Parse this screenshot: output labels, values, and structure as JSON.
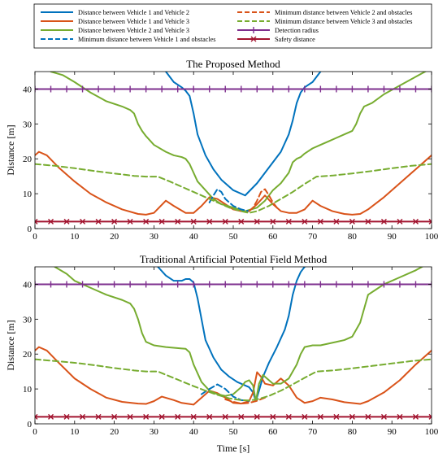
{
  "legend": [
    {
      "label": "Distance between Vehicle 1 and Vehicle 2",
      "color": "#0072BD",
      "style": "solid",
      "marker": "none"
    },
    {
      "label": "Distance between Vehicle 1 and Vehicle 3",
      "color": "#D95319",
      "style": "solid",
      "marker": "none"
    },
    {
      "label": "Distance between Vehicle 2 and Vehicle 3",
      "color": "#77AC30",
      "style": "solid",
      "marker": "none"
    },
    {
      "label": "Minimum distance between Vehicle 1 and obstacles",
      "color": "#0072BD",
      "style": "dashed",
      "marker": "none"
    },
    {
      "label": "Minimum distance between Vehicle 2 and obstacles",
      "color": "#D95319",
      "style": "dashed",
      "marker": "none"
    },
    {
      "label": "Minimum distance between Vehicle 3 and obstacles",
      "color": "#77AC30",
      "style": "dashed",
      "marker": "none"
    },
    {
      "label": "Detection radius",
      "color": "#7E2F8E",
      "style": "solid",
      "marker": "plus"
    },
    {
      "label": "Safety distance",
      "color": "#A2142F",
      "style": "solid",
      "marker": "x"
    }
  ],
  "chart_data": [
    {
      "type": "line",
      "title": "The Proposed Method",
      "xlabel": "",
      "ylabel": "Distance [m]",
      "xlim": [
        0,
        100
      ],
      "ylim": [
        0,
        45
      ],
      "xticks": [
        0,
        10,
        20,
        30,
        40,
        50,
        60,
        70,
        80,
        90,
        100
      ],
      "yticks": [
        0,
        10,
        20,
        30,
        40
      ],
      "series": [
        {
          "name": "Distance between Vehicle 1 and Vehicle 2",
          "color": "#0072BD",
          "style": "solid",
          "x": [
            33,
            35,
            37,
            38,
            39,
            40,
            41,
            43,
            45,
            47,
            50,
            53,
            56,
            58,
            60,
            62,
            64,
            65,
            66,
            67,
            68,
            70,
            72
          ],
          "y": [
            45,
            42,
            40.5,
            39.5,
            38,
            33,
            27,
            21,
            17,
            14,
            11,
            9.5,
            13,
            16,
            19,
            22,
            27,
            31,
            36,
            39,
            40.5,
            42,
            45
          ]
        },
        {
          "name": "Distance between Vehicle 1 and Vehicle 3",
          "color": "#D95319",
          "style": "solid",
          "x": [
            0,
            1,
            3,
            6,
            10,
            14,
            18,
            22,
            26,
            28,
            30,
            33,
            35,
            38,
            40,
            42,
            44,
            46,
            48,
            50,
            52,
            54,
            56,
            58,
            60,
            62,
            64,
            66,
            68,
            70,
            72,
            75,
            78,
            80,
            82,
            84,
            88,
            92,
            96,
            100
          ],
          "y": [
            21,
            22,
            21,
            17.5,
            13.5,
            10,
            7.5,
            5.5,
            4.2,
            4,
            4.5,
            8,
            6.5,
            4.5,
            4.5,
            6.5,
            9,
            8.5,
            7,
            5.5,
            5,
            5,
            7,
            9.5,
            7,
            5,
            4.5,
            4.5,
            5.5,
            8,
            6.5,
            5,
            4.2,
            4,
            4.2,
            5.5,
            9,
            13,
            17,
            21
          ]
        },
        {
          "name": "Distance between Vehicle 2 and Vehicle 3",
          "color": "#77AC30",
          "style": "solid",
          "x": [
            4,
            7,
            10,
            14,
            18,
            22,
            24,
            25,
            26,
            27,
            28,
            30,
            33,
            35,
            37,
            38,
            39,
            40,
            41,
            43,
            45,
            47,
            50,
            53,
            56,
            58,
            60,
            62,
            64,
            65,
            66,
            67,
            68,
            70,
            72,
            74,
            76,
            78,
            80,
            81,
            82,
            83,
            85,
            88,
            92,
            96,
            100
          ],
          "y": [
            45,
            44,
            42,
            39,
            36.5,
            35,
            34,
            33,
            30,
            28,
            26.5,
            24,
            22,
            21,
            20.5,
            20,
            18.5,
            16,
            13.5,
            11,
            8.5,
            7,
            6,
            5,
            6,
            8,
            11,
            13,
            16,
            19,
            20,
            20.5,
            21.5,
            23,
            24,
            25,
            26,
            27,
            28,
            30,
            33,
            35,
            36,
            38.5,
            41,
            43.5,
            46
          ]
        },
        {
          "name": "Minimum distance between Vehicle 1 and obstacles",
          "color": "#0072BD",
          "style": "dashed",
          "x": [
            44,
            45,
            46,
            47,
            48,
            50,
            52,
            54
          ],
          "y": [
            7.5,
            9.5,
            11.3,
            10.5,
            8.5,
            6.5,
            5.5,
            5
          ]
        },
        {
          "name": "Minimum distance between Vehicle 2 and obstacles",
          "color": "#D95319",
          "style": "dashed",
          "x": [
            54,
            55,
            56,
            57,
            58,
            59,
            60,
            61
          ],
          "y": [
            5,
            6,
            8,
            10.5,
            11.3,
            9.5,
            7.5,
            6
          ]
        },
        {
          "name": "Minimum distance between Vehicle 3 and obstacles",
          "color": "#77AC30",
          "style": "dashed",
          "x": [
            0,
            5,
            10,
            15,
            20,
            25,
            28,
            31,
            34,
            37,
            40,
            43,
            46,
            49,
            52,
            54,
            56,
            59,
            62,
            65,
            68,
            71,
            75,
            80,
            85,
            90,
            95,
            100
          ],
          "y": [
            18.5,
            18,
            17.3,
            16.5,
            15.8,
            15.1,
            14.9,
            14.9,
            13.5,
            12,
            10.5,
            9,
            7.5,
            6,
            5,
            4.5,
            5,
            6.5,
            8.5,
            10.5,
            12.8,
            14.9,
            15.2,
            15.8,
            16.5,
            17.3,
            18,
            18.5
          ]
        },
        {
          "name": "Detection radius",
          "color": "#7E2F8E",
          "style": "solid",
          "marker": "plus",
          "x": [
            0,
            100
          ],
          "y": [
            40,
            40
          ]
        },
        {
          "name": "Safety distance",
          "color": "#A2142F",
          "style": "solid",
          "marker": "x",
          "x": [
            0,
            100
          ],
          "y": [
            2,
            2
          ]
        }
      ]
    },
    {
      "type": "line",
      "title": "Traditional Artificial Potential Field Method",
      "xlabel": "Time [s]",
      "ylabel": "Distance [m]",
      "xlim": [
        0,
        100
      ],
      "ylim": [
        0,
        45
      ],
      "xticks": [
        0,
        10,
        20,
        30,
        40,
        50,
        60,
        70,
        80,
        90,
        100
      ],
      "yticks": [
        0,
        10,
        20,
        30,
        40
      ],
      "series": [
        {
          "name": "Distance between Vehicle 1 and Vehicle 2",
          "color": "#0072BD",
          "style": "solid",
          "x": [
            31,
            33,
            35,
            37,
            38,
            39,
            40,
            41,
            42,
            43,
            45,
            47,
            49,
            51,
            53,
            54,
            55,
            55.7,
            56.5,
            57.5,
            59,
            61,
            63,
            64,
            65,
            66,
            67,
            68,
            70
          ],
          "y": [
            45,
            42.5,
            41,
            41,
            41.5,
            41.5,
            40.5,
            36,
            30,
            24,
            19,
            15.5,
            13.5,
            12,
            11,
            10.5,
            9,
            6.5,
            9.5,
            13.5,
            17.5,
            22,
            27,
            31,
            37,
            41,
            43.5,
            45,
            46
          ]
        },
        {
          "name": "Distance between Vehicle 1 and Vehicle 3",
          "color": "#D95319",
          "style": "solid",
          "x": [
            0,
            1,
            3,
            6,
            10,
            14,
            18,
            22,
            26,
            28,
            30,
            32,
            35,
            37,
            40,
            42,
            44,
            46,
            48,
            50,
            52,
            54,
            55,
            56,
            57,
            58,
            60,
            62,
            64,
            66,
            68,
            70,
            72,
            75,
            78,
            82,
            84,
            88,
            92,
            96,
            100
          ],
          "y": [
            21,
            22,
            21,
            17.5,
            13,
            10,
            7.5,
            6.3,
            5.8,
            5.7,
            6.5,
            7.8,
            6.8,
            6,
            5.5,
            7.5,
            9.5,
            8.8,
            7.5,
            6,
            5.8,
            6.5,
            9,
            14.8,
            13.5,
            11.5,
            11,
            13,
            11,
            7.5,
            6,
            6.5,
            7.5,
            7,
            6.2,
            5.7,
            6.5,
            9,
            12.5,
            17,
            21
          ]
        },
        {
          "name": "Distance between Vehicle 2 and Vehicle 3",
          "color": "#77AC30",
          "style": "solid",
          "x": [
            5,
            8,
            10,
            14,
            18,
            22,
            24,
            25,
            26,
            27,
            28,
            30,
            33,
            35,
            37,
            38,
            39,
            40,
            42,
            44,
            46,
            48,
            50,
            52,
            53,
            54,
            55,
            55.7,
            56.5,
            57.5,
            58.5,
            60,
            62,
            64,
            66,
            67,
            68,
            70,
            72,
            74,
            76,
            78,
            80,
            81,
            82,
            83,
            84,
            86,
            88,
            92,
            96,
            100
          ],
          "y": [
            45,
            43,
            41,
            39,
            37,
            35.5,
            34.5,
            33,
            30,
            26,
            23.5,
            22.5,
            22,
            21.8,
            21.6,
            21.5,
            20.5,
            17,
            12,
            9.5,
            8.5,
            8,
            8.5,
            10.5,
            12,
            12.5,
            11,
            6.5,
            11.5,
            14,
            13,
            11.5,
            11.5,
            13,
            17,
            20,
            22,
            22.5,
            22.5,
            23,
            23.5,
            24,
            25,
            27,
            29,
            33,
            37,
            38.5,
            40,
            42,
            44,
            46.5
          ]
        },
        {
          "name": "Minimum distance between Vehicle 1 and obstacles",
          "color": "#0072BD",
          "style": "dashed",
          "x": [
            42,
            44,
            46,
            48,
            50,
            52,
            54
          ],
          "y": [
            8.5,
            10,
            11.3,
            10,
            7.8,
            6.8,
            6.6
          ]
        },
        {
          "name": "Minimum distance between Vehicle 2 and obstacles",
          "color": "#D95319",
          "style": "dashed",
          "x": [
            48,
            50,
            52,
            54,
            56,
            58
          ],
          "y": [
            7,
            6.3,
            5.8,
            6,
            6.6,
            7.5
          ]
        },
        {
          "name": "Minimum distance between Vehicle 3 and obstacles",
          "color": "#77AC30",
          "style": "dashed",
          "x": [
            0,
            5,
            10,
            15,
            20,
            25,
            28,
            31,
            34,
            37,
            40,
            43,
            46,
            49,
            52,
            54,
            56,
            59,
            62,
            65,
            68,
            71,
            75,
            80,
            85,
            90,
            95,
            100
          ],
          "y": [
            18.5,
            18,
            17.5,
            16.8,
            16,
            15.3,
            15,
            15,
            13.6,
            12.2,
            10.8,
            9.5,
            8.3,
            7.3,
            6.8,
            6.7,
            7,
            8,
            9.5,
            11.3,
            13.2,
            15,
            15.3,
            15.9,
            16.6,
            17.3,
            18,
            18.5
          ]
        },
        {
          "name": "Detection radius",
          "color": "#7E2F8E",
          "style": "solid",
          "marker": "plus",
          "x": [
            0,
            100
          ],
          "y": [
            40,
            40
          ]
        },
        {
          "name": "Safety distance",
          "color": "#A2142F",
          "style": "solid",
          "marker": "x",
          "x": [
            0,
            100
          ],
          "y": [
            2,
            2
          ]
        }
      ]
    }
  ]
}
